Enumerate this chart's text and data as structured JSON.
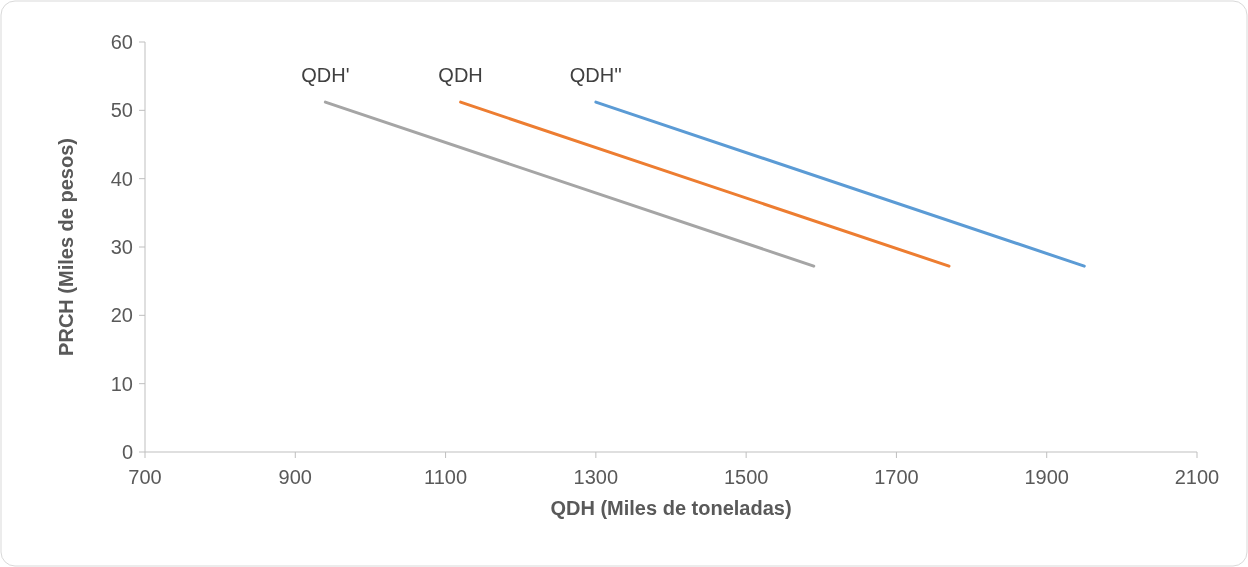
{
  "chart_data": {
    "type": "line",
    "xlabel": "QDH (Miles de toneladas)",
    "ylabel": "PRCH (Miles de pesos)",
    "xlim": [
      700,
      2100
    ],
    "xticks": [
      700,
      900,
      1100,
      1300,
      1500,
      1700,
      1900,
      2100
    ],
    "ylim": [
      0,
      60
    ],
    "yticks": [
      0,
      10,
      20,
      30,
      40,
      50,
      60
    ],
    "grid": false,
    "marker": "none",
    "series": [
      {
        "name": "QDH'",
        "color": "#a5a5a5",
        "x": [
          940,
          1590
        ],
        "values": [
          51.2,
          27.2
        ]
      },
      {
        "name": "QDH",
        "color": "#ed7d31",
        "x": [
          1120,
          1770
        ],
        "values": [
          51.2,
          27.2
        ]
      },
      {
        "name": "QDH''",
        "color": "#5b9bd5",
        "x": [
          1300,
          1950
        ],
        "values": [
          51.2,
          27.2
        ]
      }
    ]
  }
}
